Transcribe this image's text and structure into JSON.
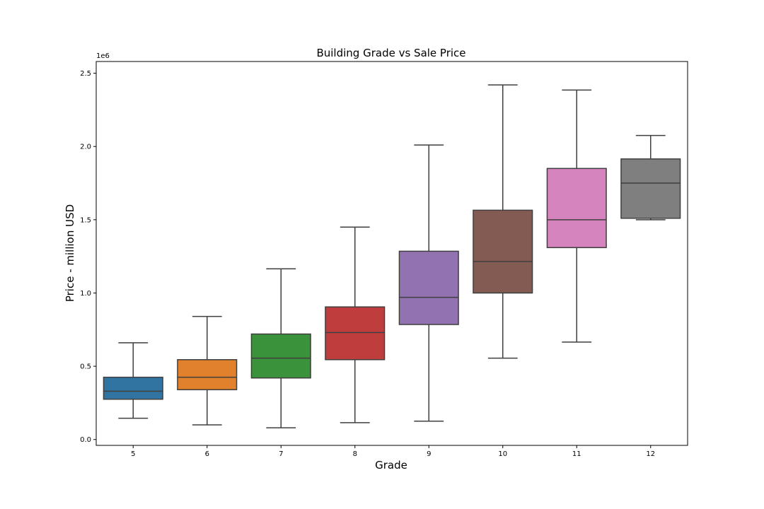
{
  "chart_data": {
    "type": "box",
    "title": "Building Grade vs Sale Price",
    "xlabel": "Grade",
    "ylabel": "Price - million USD",
    "y_offset_label": "1e6",
    "ylim": [
      -40000,
      2580000
    ],
    "yticks": [
      0,
      500000,
      1000000,
      1500000,
      2000000,
      2500000
    ],
    "ytick_labels": [
      "0.0",
      "0.5",
      "1.0",
      "1.5",
      "2.0",
      "2.5"
    ],
    "grid": false,
    "legend": "none",
    "categories": [
      "5",
      "6",
      "7",
      "8",
      "9",
      "10",
      "11",
      "12"
    ],
    "boxes": [
      {
        "grade": "5",
        "whisker_low": 145000,
        "q1": 275000,
        "median": 330000,
        "q3": 425000,
        "whisker_high": 660000,
        "color": "#3274a1"
      },
      {
        "grade": "6",
        "whisker_low": 100000,
        "q1": 340000,
        "median": 425000,
        "q3": 545000,
        "whisker_high": 840000,
        "color": "#e1812c"
      },
      {
        "grade": "7",
        "whisker_low": 80000,
        "q1": 420000,
        "median": 555000,
        "q3": 720000,
        "whisker_high": 1165000,
        "color": "#3a923a"
      },
      {
        "grade": "8",
        "whisker_low": 115000,
        "q1": 545000,
        "median": 730000,
        "q3": 905000,
        "whisker_high": 1450000,
        "color": "#c03d3e"
      },
      {
        "grade": "9",
        "whisker_low": 125000,
        "q1": 785000,
        "median": 970000,
        "q3": 1285000,
        "whisker_high": 2010000,
        "color": "#9372b2"
      },
      {
        "grade": "10",
        "whisker_low": 555000,
        "q1": 1000000,
        "median": 1215000,
        "q3": 1565000,
        "whisker_high": 2420000,
        "color": "#845b53"
      },
      {
        "grade": "11",
        "whisker_low": 665000,
        "q1": 1310000,
        "median": 1500000,
        "q3": 1850000,
        "whisker_high": 2385000,
        "color": "#d684bd"
      },
      {
        "grade": "12",
        "whisker_low": 1500000,
        "q1": 1510000,
        "median": 1750000,
        "q3": 1915000,
        "whisker_high": 2075000,
        "color": "#7f7f7f"
      }
    ]
  }
}
